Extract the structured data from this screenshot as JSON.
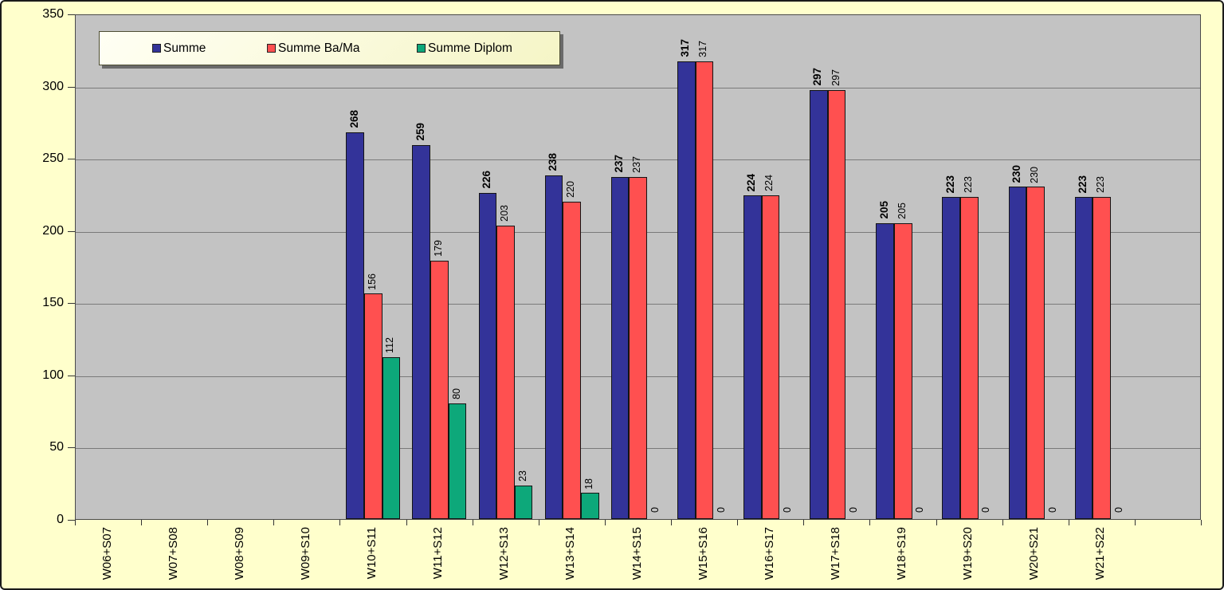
{
  "chart_data": {
    "type": "bar",
    "title": "",
    "xlabel": "",
    "ylabel": "",
    "categories": [
      "W06+S07",
      "W07+S08",
      "W08+S09",
      "W09+S10",
      "W10+S11",
      "W11+S12",
      "W12+S13",
      "W13+S14",
      "W14+S15",
      "W15+S16",
      "W16+S17",
      "W17+S18",
      "W18+S19",
      "W19+S20",
      "W20+S21",
      "W21+S22"
    ],
    "series": [
      {
        "name": "Summe",
        "color": "#333399",
        "bold_labels": true,
        "values": [
          null,
          null,
          null,
          null,
          268,
          259,
          226,
          238,
          237,
          317,
          224,
          297,
          205,
          223,
          230,
          223
        ]
      },
      {
        "name": "Summe Ba/Ma",
        "color": "#FF5050",
        "bold_labels": false,
        "values": [
          null,
          null,
          null,
          null,
          156,
          179,
          203,
          220,
          237,
          317,
          224,
          297,
          205,
          223,
          230,
          223
        ]
      },
      {
        "name": "Summe Diplom",
        "color": "#0DA87A",
        "bold_labels": false,
        "values": [
          null,
          null,
          null,
          null,
          112,
          80,
          23,
          18,
          0,
          0,
          0,
          0,
          0,
          0,
          0,
          0
        ]
      }
    ],
    "ylim": [
      0,
      350
    ],
    "yticks": [
      0,
      50,
      100,
      150,
      200,
      250,
      300,
      350
    ],
    "grid": true,
    "legend_position": "top-left",
    "extra_empty_slots": 1
  },
  "colors": {
    "chart_background": "#FFFFCC",
    "plot_background": "#C3C3C3",
    "gridline": "#7a7a7a",
    "bar_border": "#141414",
    "series_blue": "#333399",
    "series_red": "#FF5050",
    "series_green": "#0DA87A"
  },
  "legend": {
    "items": [
      {
        "label": "Summe",
        "color": "#333399"
      },
      {
        "label": "Summe Ba/Ma",
        "color": "#FF5050"
      },
      {
        "label": "Summe Diplom",
        "color": "#0DA87A"
      }
    ]
  }
}
